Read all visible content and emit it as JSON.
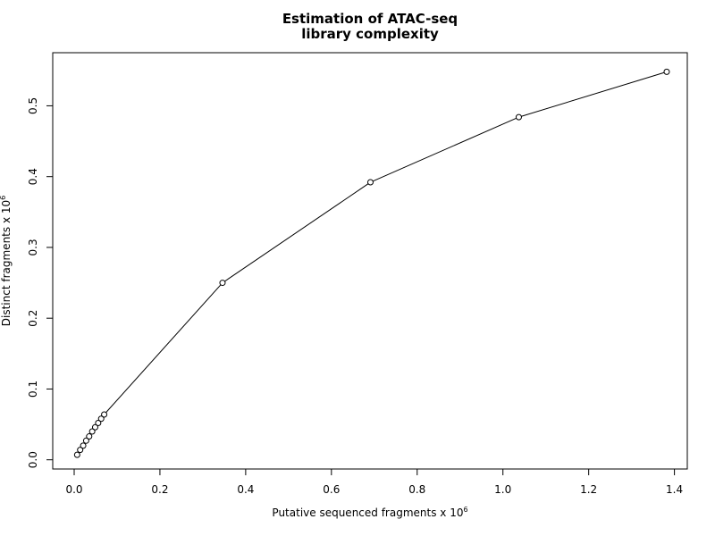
{
  "chart_data": {
    "type": "line",
    "title": [
      "Estimation of ATAC-seq",
      "library complexity"
    ],
    "xlabel": "Putative sequenced fragments x 10",
    "xlabel_exponent": "6",
    "ylabel": "Distinct fragments x 10",
    "ylabel_exponent": "6",
    "xlim": [
      -0.05,
      1.43
    ],
    "ylim": [
      -0.013,
      0.575
    ],
    "x_ticks": [
      0.0,
      0.2,
      0.4,
      0.6,
      0.8,
      1.0,
      1.2,
      1.4
    ],
    "x_tick_labels": [
      "0.0",
      "0.2",
      "0.4",
      "0.6",
      "0.8",
      "1.0",
      "1.2",
      "1.4"
    ],
    "y_ticks": [
      0.0,
      0.1,
      0.2,
      0.3,
      0.4,
      0.5
    ],
    "y_tick_labels": [
      "0.0",
      "0.1",
      "0.2",
      "0.3",
      "0.4",
      "0.5"
    ],
    "grid": false,
    "marker": "open-circle",
    "line_color": "#000000",
    "series": [
      {
        "x": [
          0.007,
          0.014,
          0.021,
          0.028,
          0.035,
          0.042,
          0.049,
          0.056,
          0.063,
          0.07,
          0.346,
          0.691,
          1.037,
          1.382
        ],
        "y": [
          0.007,
          0.014,
          0.02,
          0.027,
          0.033,
          0.04,
          0.046,
          0.052,
          0.058,
          0.064,
          0.25,
          0.392,
          0.484,
          0.548
        ]
      }
    ]
  }
}
